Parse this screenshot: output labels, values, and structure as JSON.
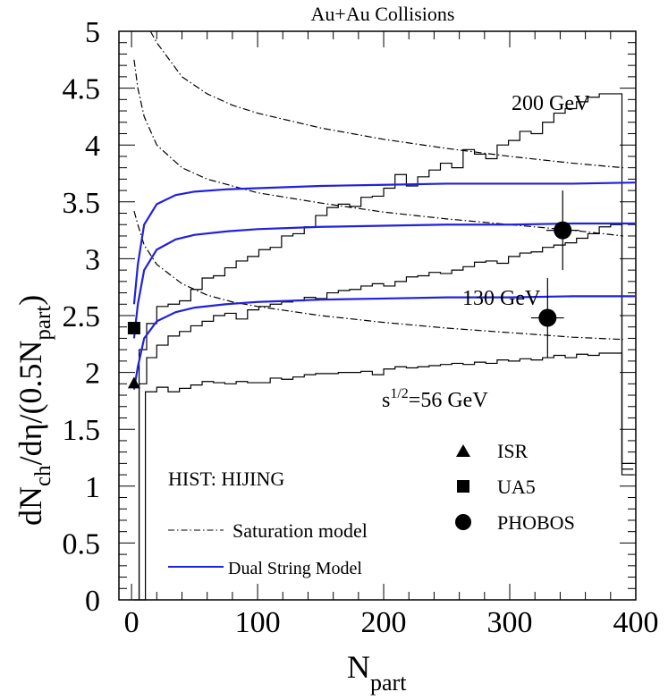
{
  "chart_data": {
    "type": "line",
    "title": "Au+Au Collisions",
    "xlabel": {
      "main": "N",
      "sub": "part"
    },
    "ylabel": {
      "a": "dN",
      "a_sub": "ch",
      "b": "/dη/(0.5N",
      "b_sub": "part",
      "c": ")"
    },
    "xlim": [
      -10,
      400
    ],
    "ylim": [
      0,
      5
    ],
    "x_ticks": [
      0,
      100,
      200,
      300,
      400
    ],
    "x_tick_labels": [
      "0",
      "100",
      "200",
      "300",
      "400"
    ],
    "y_ticks": [
      0,
      0.5,
      1,
      1.5,
      2,
      2.5,
      3,
      3.5,
      4,
      4.5,
      5
    ],
    "y_tick_labels": [
      "0",
      "0.5",
      "1",
      "1.5",
      "2",
      "2.5",
      "3",
      "3.5",
      "4",
      "4.5",
      "5"
    ],
    "annotations": {
      "e200": "200 GeV",
      "e130": "130 GeV",
      "e56_prefix": "s",
      "e56_sup": "1/2",
      "e56_suffix": "=56 GeV",
      "hist_label": "HIST: HIJING"
    },
    "legend": {
      "placement": "bottom",
      "markers": [
        {
          "label": "ISR",
          "marker": "triangle"
        },
        {
          "label": "UA5",
          "marker": "square"
        },
        {
          "label": "PHOBOS",
          "marker": "circle"
        }
      ],
      "lines": [
        {
          "label": "Saturation model",
          "style": "dash-dot",
          "color": "#000000"
        },
        {
          "label": "Dual String Model",
          "style": "solid",
          "color": "#2020e0"
        }
      ]
    },
    "colors": {
      "dual_string": "#2020e0",
      "saturation": "#000000",
      "hist": "#000000"
    },
    "series": [
      {
        "group": "hist",
        "energy": "56 GeV",
        "x": [
          2,
          11,
          20,
          29,
          38,
          47,
          56,
          65,
          74,
          83,
          92,
          101,
          110,
          119,
          128,
          137,
          146,
          155,
          164,
          173,
          182,
          191,
          200,
          209,
          218,
          227,
          236,
          245,
          254,
          263,
          272,
          281,
          290,
          299,
          308,
          317,
          326,
          335,
          344,
          353,
          362,
          371,
          380,
          389,
          398
        ],
        "y": [
          0,
          1.83,
          1.87,
          1.83,
          1.86,
          1.89,
          1.92,
          1.91,
          1.9,
          1.92,
          1.91,
          1.91,
          1.95,
          1.94,
          1.96,
          1.98,
          1.99,
          1.99,
          2.0,
          2.0,
          2.01,
          1.98,
          2.03,
          2.05,
          2.04,
          2.05,
          2.06,
          2.07,
          2.08,
          2.07,
          2.09,
          2.08,
          2.11,
          2.1,
          2.12,
          2.11,
          2.13,
          2.15,
          2.13,
          2.16,
          2.15,
          2.17,
          2.17,
          1.1,
          1.1
        ]
      },
      {
        "group": "hist",
        "energy": "130 GeV",
        "x": [
          6,
          12,
          20,
          29,
          38,
          47,
          56,
          65,
          74,
          83,
          92,
          101,
          110,
          119,
          128,
          137,
          146,
          155,
          164,
          173,
          182,
          191,
          200,
          209,
          218,
          227,
          236,
          245,
          254,
          263,
          272,
          281,
          290,
          299,
          308,
          317,
          326,
          335,
          344,
          353,
          362,
          371,
          380,
          389,
          398
        ],
        "y": [
          1.9,
          2.13,
          2.24,
          2.32,
          2.36,
          2.41,
          2.45,
          2.5,
          2.52,
          2.47,
          2.55,
          2.58,
          2.6,
          2.62,
          2.63,
          2.66,
          2.65,
          2.7,
          2.72,
          2.73,
          2.76,
          2.78,
          2.76,
          2.8,
          2.84,
          2.85,
          2.88,
          2.87,
          2.9,
          2.93,
          2.97,
          2.98,
          2.96,
          3.02,
          3.05,
          3.06,
          3.1,
          3.12,
          3.14,
          3.18,
          3.22,
          3.28,
          3.3,
          1.15,
          1.15
        ]
      },
      {
        "group": "hist",
        "energy": "200 GeV",
        "x": [
          6,
          12,
          20,
          29,
          38,
          47,
          56,
          65,
          74,
          83,
          92,
          101,
          110,
          119,
          128,
          137,
          146,
          155,
          164,
          173,
          182,
          191,
          200,
          209,
          218,
          227,
          236,
          245,
          254,
          263,
          272,
          281,
          290,
          299,
          308,
          317,
          326,
          335,
          344,
          353,
          362,
          371,
          380,
          389,
          398
        ],
        "y": [
          2.2,
          2.43,
          2.58,
          2.6,
          2.63,
          2.73,
          2.83,
          2.85,
          2.92,
          2.98,
          3.02,
          3.08,
          3.1,
          3.2,
          3.22,
          3.28,
          3.38,
          3.45,
          3.48,
          3.46,
          3.54,
          3.55,
          3.62,
          3.74,
          3.64,
          3.72,
          3.78,
          3.84,
          3.8,
          3.96,
          3.92,
          3.88,
          4.0,
          4.04,
          4.12,
          4.1,
          4.2,
          4.28,
          4.32,
          4.38,
          4.42,
          4.45,
          4.45,
          1.2,
          1.2
        ]
      },
      {
        "group": "dual_string",
        "name": "Dual String Model",
        "x": [
          2,
          5,
          10,
          20,
          35,
          50,
          75,
          100,
          150,
          200,
          250,
          300,
          350,
          400
        ],
        "y": [
          1.85,
          2.05,
          2.3,
          2.45,
          2.53,
          2.57,
          2.6,
          2.62,
          2.64,
          2.65,
          2.66,
          2.66,
          2.67,
          2.67
        ]
      },
      {
        "group": "dual_string",
        "name": "Dual String Model",
        "x": [
          2,
          5,
          10,
          20,
          35,
          50,
          75,
          100,
          150,
          200,
          250,
          300,
          350,
          400
        ],
        "y": [
          2.3,
          2.6,
          2.9,
          3.08,
          3.17,
          3.21,
          3.24,
          3.26,
          3.28,
          3.29,
          3.3,
          3.3,
          3.31,
          3.31
        ]
      },
      {
        "group": "dual_string",
        "name": "Dual String Model",
        "x": [
          2,
          5,
          10,
          20,
          35,
          50,
          75,
          100,
          150,
          200,
          250,
          300,
          350,
          400
        ],
        "y": [
          2.6,
          2.95,
          3.3,
          3.48,
          3.56,
          3.59,
          3.61,
          3.62,
          3.64,
          3.65,
          3.66,
          3.66,
          3.66,
          3.67
        ]
      },
      {
        "group": "saturation",
        "name": "Saturation model",
        "x": [
          2,
          5,
          10,
          20,
          40,
          60,
          80,
          100,
          150,
          200,
          250,
          300,
          350,
          390
        ],
        "y": [
          3.42,
          3.3,
          3.12,
          2.95,
          2.78,
          2.68,
          2.62,
          2.58,
          2.5,
          2.44,
          2.39,
          2.35,
          2.31,
          2.29
        ]
      },
      {
        "group": "saturation",
        "name": "Saturation model",
        "x": [
          2,
          5,
          10,
          20,
          40,
          60,
          80,
          100,
          150,
          200,
          250,
          300,
          350,
          390
        ],
        "y": [
          4.75,
          4.5,
          4.25,
          4.0,
          3.8,
          3.7,
          3.64,
          3.58,
          3.49,
          3.41,
          3.35,
          3.3,
          3.25,
          3.2
        ]
      },
      {
        "group": "saturation",
        "name": "Saturation model",
        "x": [
          15,
          20,
          40,
          60,
          80,
          100,
          150,
          200,
          250,
          300,
          350,
          390
        ],
        "y": [
          5.0,
          4.9,
          4.6,
          4.45,
          4.35,
          4.28,
          4.15,
          4.05,
          3.97,
          3.9,
          3.84,
          3.8
        ]
      }
    ],
    "points": [
      {
        "label": "ISR",
        "marker": "triangle",
        "x": 2,
        "y": 1.9
      },
      {
        "label": "UA5",
        "marker": "square",
        "x": 2,
        "y": 2.39
      },
      {
        "label": "PHOBOS",
        "marker": "circle",
        "x": 330,
        "y": 2.48,
        "xerr": 13,
        "yerr": 0.35
      },
      {
        "label": "PHOBOS",
        "marker": "circle",
        "x": 342,
        "y": 3.25,
        "xerr": 13,
        "yerr": 0.35
      }
    ]
  }
}
